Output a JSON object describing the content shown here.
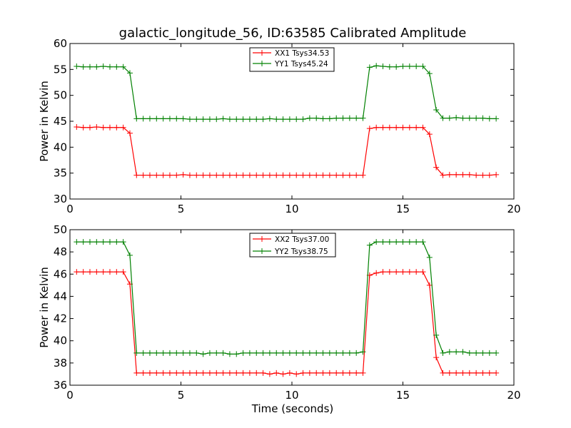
{
  "chart_data": [
    {
      "type": "line",
      "title": "galactic_longitude_56, ID:63585 Calibrated Amplitude",
      "xlabel": "",
      "ylabel": "Power in Kelvin",
      "xlim": [
        0,
        20
      ],
      "ylim": [
        30,
        60
      ],
      "xticks": [
        "0",
        "5",
        "10",
        "15",
        "20"
      ],
      "yticks": [
        "30",
        "35",
        "40",
        "45",
        "50",
        "55",
        "60"
      ],
      "legend_position": "top-center",
      "x": [
        0.3,
        0.6,
        0.9,
        1.2,
        1.5,
        1.8,
        2.1,
        2.4,
        2.7,
        3.0,
        3.3,
        3.6,
        3.9,
        4.2,
        4.5,
        4.8,
        5.1,
        5.4,
        5.7,
        6.0,
        6.3,
        6.6,
        6.9,
        7.2,
        7.5,
        7.8,
        8.1,
        8.4,
        8.7,
        9.0,
        9.3,
        9.6,
        9.9,
        10.2,
        10.5,
        10.8,
        11.1,
        11.4,
        11.7,
        12.0,
        12.3,
        12.6,
        12.9,
        13.2,
        13.5,
        13.8,
        14.1,
        14.4,
        14.7,
        15.0,
        15.3,
        15.6,
        15.9,
        16.2,
        16.5,
        16.8,
        17.1,
        17.4,
        17.7,
        18.0,
        18.3,
        18.6,
        18.9,
        19.2
      ],
      "series": [
        {
          "name": "XX1 Tsys34.53",
          "color": "#ff0000",
          "values": [
            43.9,
            43.8,
            43.8,
            43.9,
            43.8,
            43.8,
            43.8,
            43.8,
            42.7,
            34.6,
            34.6,
            34.6,
            34.6,
            34.6,
            34.6,
            34.6,
            34.7,
            34.6,
            34.6,
            34.6,
            34.6,
            34.6,
            34.6,
            34.6,
            34.6,
            34.6,
            34.6,
            34.6,
            34.6,
            34.6,
            34.6,
            34.6,
            34.6,
            34.6,
            34.6,
            34.6,
            34.6,
            34.6,
            34.6,
            34.6,
            34.6,
            34.6,
            34.6,
            34.6,
            43.6,
            43.8,
            43.8,
            43.8,
            43.8,
            43.8,
            43.8,
            43.8,
            43.8,
            42.5,
            36.1,
            34.6,
            34.7,
            34.7,
            34.7,
            34.7,
            34.6,
            34.6,
            34.6,
            34.7
          ]
        },
        {
          "name": "YY1 Tsys45.24",
          "color": "#008000",
          "values": [
            55.6,
            55.5,
            55.5,
            55.5,
            55.6,
            55.5,
            55.5,
            55.5,
            54.3,
            45.5,
            45.5,
            45.5,
            45.5,
            45.5,
            45.5,
            45.5,
            45.5,
            45.4,
            45.4,
            45.4,
            45.4,
            45.4,
            45.5,
            45.4,
            45.4,
            45.4,
            45.4,
            45.4,
            45.4,
            45.5,
            45.4,
            45.4,
            45.4,
            45.4,
            45.4,
            45.6,
            45.6,
            45.5,
            45.5,
            45.6,
            45.6,
            45.6,
            45.6,
            45.6,
            55.4,
            55.7,
            55.6,
            55.5,
            55.5,
            55.6,
            55.6,
            55.6,
            55.6,
            54.2,
            47.2,
            45.6,
            45.6,
            45.7,
            45.6,
            45.6,
            45.6,
            45.6,
            45.5,
            45.5
          ]
        }
      ]
    },
    {
      "type": "line",
      "title": "",
      "xlabel": "Time (seconds)",
      "ylabel": "Power in Kelvin",
      "xlim": [
        0,
        20
      ],
      "ylim": [
        36,
        50
      ],
      "xticks": [
        "0",
        "5",
        "10",
        "15",
        "20"
      ],
      "yticks": [
        "36",
        "38",
        "40",
        "42",
        "44",
        "46",
        "48",
        "50"
      ],
      "legend_position": "top-center",
      "x": [
        0.3,
        0.6,
        0.9,
        1.2,
        1.5,
        1.8,
        2.1,
        2.4,
        2.7,
        3.0,
        3.3,
        3.6,
        3.9,
        4.2,
        4.5,
        4.8,
        5.1,
        5.4,
        5.7,
        6.0,
        6.3,
        6.6,
        6.9,
        7.2,
        7.5,
        7.8,
        8.1,
        8.4,
        8.7,
        9.0,
        9.3,
        9.6,
        9.9,
        10.2,
        10.5,
        10.8,
        11.1,
        11.4,
        11.7,
        12.0,
        12.3,
        12.6,
        12.9,
        13.2,
        13.5,
        13.8,
        14.1,
        14.4,
        14.7,
        15.0,
        15.3,
        15.6,
        15.9,
        16.2,
        16.5,
        16.8,
        17.1,
        17.4,
        17.7,
        18.0,
        18.3,
        18.6,
        18.9,
        19.2
      ],
      "series": [
        {
          "name": "XX2 Tsys37.00",
          "color": "#ff0000",
          "values": [
            46.2,
            46.2,
            46.2,
            46.2,
            46.2,
            46.2,
            46.2,
            46.2,
            45.1,
            37.1,
            37.1,
            37.1,
            37.1,
            37.1,
            37.1,
            37.1,
            37.1,
            37.1,
            37.1,
            37.1,
            37.1,
            37.1,
            37.1,
            37.1,
            37.1,
            37.1,
            37.1,
            37.1,
            37.1,
            37.0,
            37.1,
            37.0,
            37.1,
            37.0,
            37.1,
            37.1,
            37.1,
            37.1,
            37.1,
            37.1,
            37.1,
            37.1,
            37.1,
            37.1,
            45.9,
            46.1,
            46.2,
            46.2,
            46.2,
            46.2,
            46.2,
            46.2,
            46.2,
            45.0,
            38.5,
            37.1,
            37.1,
            37.1,
            37.1,
            37.1,
            37.1,
            37.1,
            37.1,
            37.1
          ]
        },
        {
          "name": "YY2 Tsys38.75",
          "color": "#008000",
          "values": [
            48.9,
            48.9,
            48.9,
            48.9,
            48.9,
            48.9,
            48.9,
            48.9,
            47.7,
            38.9,
            38.9,
            38.9,
            38.9,
            38.9,
            38.9,
            38.9,
            38.9,
            38.9,
            38.9,
            38.8,
            38.9,
            38.9,
            38.9,
            38.8,
            38.8,
            38.9,
            38.9,
            38.9,
            38.9,
            38.9,
            38.9,
            38.9,
            38.9,
            38.9,
            38.9,
            38.9,
            38.9,
            38.9,
            38.9,
            38.9,
            38.9,
            38.9,
            38.9,
            39.0,
            48.6,
            48.9,
            48.9,
            48.9,
            48.9,
            48.9,
            48.9,
            48.9,
            48.9,
            47.5,
            40.5,
            38.9,
            39.0,
            39.0,
            39.0,
            38.9,
            38.9,
            38.9,
            38.9,
            38.9
          ]
        }
      ]
    }
  ]
}
